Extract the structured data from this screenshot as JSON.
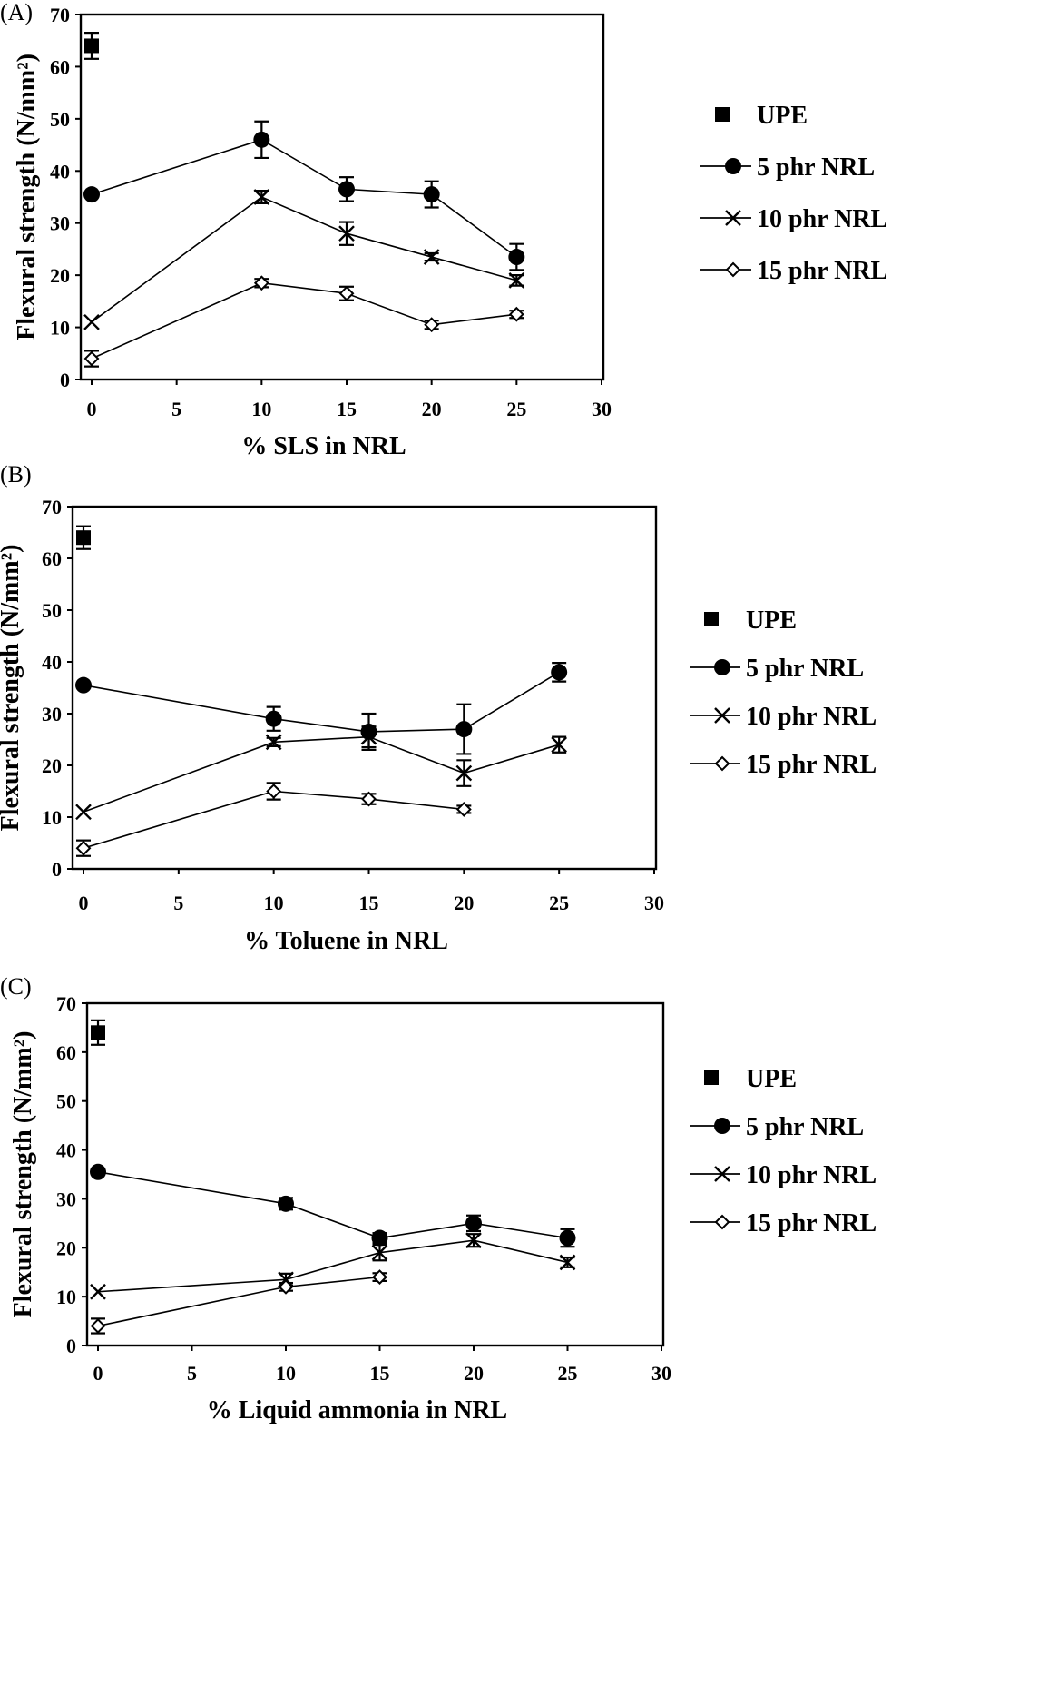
{
  "chart_data": [
    {
      "type": "line",
      "panel_label": "(A)",
      "xlabel": "% SLS in NRL",
      "ylabel": "Flexural strength (N/mm²)",
      "xlim": [
        0,
        30
      ],
      "ylim": [
        0,
        70
      ],
      "xticks": [
        "0",
        "5",
        "10",
        "15",
        "20",
        "25",
        "30"
      ],
      "yticks": [
        "0",
        "10",
        "20",
        "30",
        "40",
        "50",
        "60",
        "70"
      ],
      "legend_position": "right",
      "series": [
        {
          "name": "UPE",
          "marker": "square",
          "line": false,
          "points": [
            {
              "x": 0,
              "y": 64,
              "err": 2.5
            }
          ]
        },
        {
          "name": "5 phr NRL",
          "marker": "circle",
          "line": true,
          "points": [
            {
              "x": 0,
              "y": 35.5,
              "err": 0
            },
            {
              "x": 10,
              "y": 46,
              "err": 3.5
            },
            {
              "x": 15,
              "y": 36.5,
              "err": 2.3
            },
            {
              "x": 20,
              "y": 35.5,
              "err": 2.5
            },
            {
              "x": 25,
              "y": 23.5,
              "err": 2.5
            }
          ]
        },
        {
          "name": "10 phr NRL",
          "marker": "x",
          "line": true,
          "points": [
            {
              "x": 0,
              "y": 11,
              "err": 0
            },
            {
              "x": 10,
              "y": 35,
              "err": 1.2
            },
            {
              "x": 15,
              "y": 28,
              "err": 2.2
            },
            {
              "x": 20,
              "y": 23.5,
              "err": 0.7
            },
            {
              "x": 25,
              "y": 19,
              "err": 1.0
            }
          ]
        },
        {
          "name": "15 phr NRL",
          "marker": "diamond",
          "line": true,
          "points": [
            {
              "x": 0,
              "y": 4,
              "err": 1.5
            },
            {
              "x": 10,
              "y": 18.5,
              "err": 0.8
            },
            {
              "x": 15,
              "y": 16.5,
              "err": 1.3
            },
            {
              "x": 20,
              "y": 10.5,
              "err": 0.8
            },
            {
              "x": 25,
              "y": 12.5,
              "err": 0.7
            }
          ]
        }
      ]
    },
    {
      "type": "line",
      "panel_label": "(B)",
      "xlabel": "% Toluene in NRL",
      "ylabel": "Flexural strength (N/mm²)",
      "xlim": [
        0,
        30
      ],
      "ylim": [
        0,
        70
      ],
      "xticks": [
        "0",
        "5",
        "10",
        "15",
        "20",
        "25",
        "30"
      ],
      "yticks": [
        "0",
        "10",
        "20",
        "30",
        "40",
        "50",
        "60",
        "70"
      ],
      "legend_position": "right",
      "series": [
        {
          "name": "UPE",
          "marker": "square",
          "line": false,
          "points": [
            {
              "x": 0,
              "y": 64,
              "err": 2.2
            }
          ]
        },
        {
          "name": "5 phr NRL",
          "marker": "circle",
          "line": true,
          "points": [
            {
              "x": 0,
              "y": 35.5,
              "err": 0
            },
            {
              "x": 10,
              "y": 29,
              "err": 2.3
            },
            {
              "x": 15,
              "y": 26.5,
              "err": 3.5
            },
            {
              "x": 20,
              "y": 27,
              "err": 4.8
            },
            {
              "x": 25,
              "y": 38,
              "err": 1.8
            }
          ]
        },
        {
          "name": "10 phr NRL",
          "marker": "x",
          "line": true,
          "points": [
            {
              "x": 0,
              "y": 11,
              "err": 0
            },
            {
              "x": 10,
              "y": 24.5,
              "err": 0.8
            },
            {
              "x": 15,
              "y": 25.5,
              "err": 2.0
            },
            {
              "x": 20,
              "y": 18.5,
              "err": 2.5
            },
            {
              "x": 25,
              "y": 24,
              "err": 1.5
            }
          ]
        },
        {
          "name": "15 phr NRL",
          "marker": "diamond",
          "line": true,
          "points": [
            {
              "x": 0,
              "y": 4,
              "err": 1.5
            },
            {
              "x": 10,
              "y": 15,
              "err": 1.6
            },
            {
              "x": 15,
              "y": 13.5,
              "err": 1.0
            },
            {
              "x": 20,
              "y": 11.5,
              "err": 0.7
            }
          ]
        }
      ]
    },
    {
      "type": "line",
      "panel_label": "(C)",
      "xlabel": "% Liquid ammonia in NRL",
      "ylabel": "Flexural strength (N/mm²)",
      "xlim": [
        0,
        30
      ],
      "ylim": [
        0,
        70
      ],
      "xticks": [
        "0",
        "5",
        "10",
        "15",
        "20",
        "25",
        "30"
      ],
      "yticks": [
        "0",
        "10",
        "20",
        "30",
        "40",
        "50",
        "60",
        "70"
      ],
      "legend_position": "right",
      "series": [
        {
          "name": "UPE",
          "marker": "square",
          "line": false,
          "points": [
            {
              "x": 0,
              "y": 64,
              "err": 2.5
            }
          ]
        },
        {
          "name": "5 phr NRL",
          "marker": "circle",
          "line": true,
          "points": [
            {
              "x": 0,
              "y": 35.5,
              "err": 0
            },
            {
              "x": 10,
              "y": 29,
              "err": 1.2
            },
            {
              "x": 15,
              "y": 22,
              "err": 1.0
            },
            {
              "x": 20,
              "y": 25,
              "err": 1.6
            },
            {
              "x": 25,
              "y": 22,
              "err": 1.8
            }
          ]
        },
        {
          "name": "10 phr NRL",
          "marker": "x",
          "line": true,
          "points": [
            {
              "x": 0,
              "y": 11,
              "err": 0
            },
            {
              "x": 10,
              "y": 13.5,
              "err": 1.2
            },
            {
              "x": 15,
              "y": 19,
              "err": 1.6
            },
            {
              "x": 20,
              "y": 21.5,
              "err": 1.3
            },
            {
              "x": 25,
              "y": 17,
              "err": 1.0
            }
          ]
        },
        {
          "name": "15 phr NRL",
          "marker": "diamond",
          "line": true,
          "points": [
            {
              "x": 0,
              "y": 4,
              "err": 1.5
            },
            {
              "x": 10,
              "y": 12,
              "err": 0.8
            },
            {
              "x": 15,
              "y": 14,
              "err": 0.8
            }
          ]
        }
      ]
    }
  ]
}
